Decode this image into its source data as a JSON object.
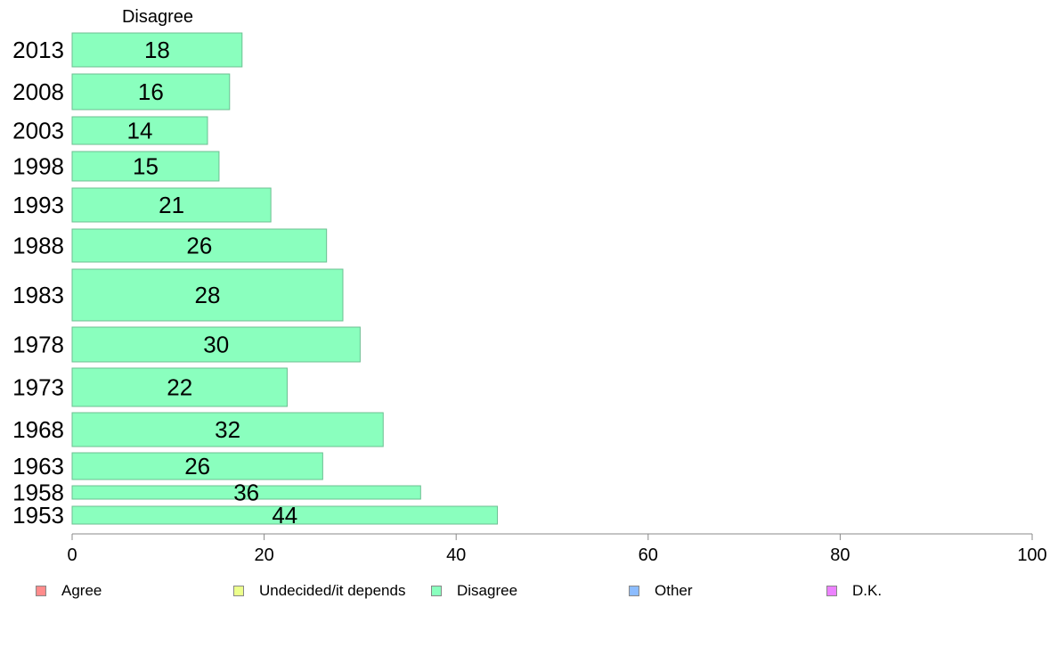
{
  "chart_data": {
    "type": "bar",
    "orientation": "horizontal",
    "title": "Disagree",
    "categories": [
      "2013",
      "2008",
      "2003",
      "1998",
      "1993",
      "1988",
      "1983",
      "1978",
      "1973",
      "1968",
      "1963",
      "1958",
      "1953"
    ],
    "values": [
      18,
      16,
      14,
      15,
      21,
      26,
      28,
      30,
      22,
      32,
      26,
      36,
      44
    ],
    "bar_value_positions": [
      17.7,
      16.4,
      14.1,
      15.3,
      20.7,
      26.5,
      28.2,
      30.0,
      22.4,
      32.4,
      26.1,
      36.3,
      44.3
    ],
    "xlim": [
      0,
      100
    ],
    "xticks": [
      0,
      20,
      40,
      60,
      80,
      100
    ],
    "grid": false,
    "bar_color": "#8affbe",
    "bar_edge_color": "#6cbf92",
    "legend_placement": "bottom",
    "legend": [
      {
        "label": "Agree",
        "color": "#ff8c8c"
      },
      {
        "label": "Undecided/it depends",
        "color": "#ecff8c"
      },
      {
        "label": "Disagree",
        "color": "#8affbe"
      },
      {
        "label": "Other",
        "color": "#8cbcff"
      },
      {
        "label": "D.K.",
        "color": "#ec82ff"
      }
    ]
  }
}
